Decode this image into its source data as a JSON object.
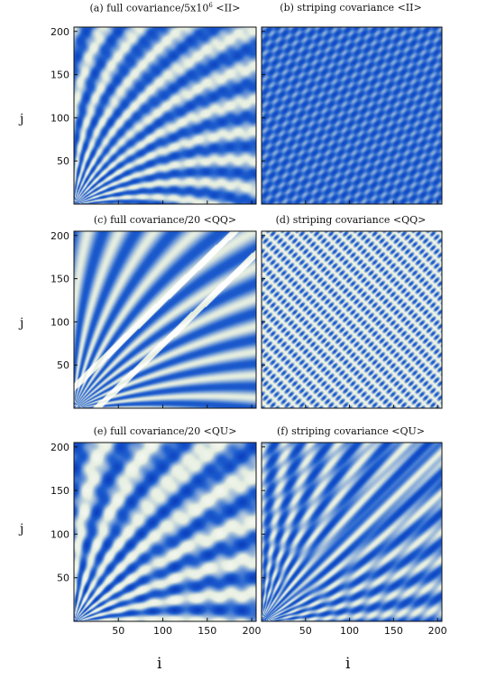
{
  "colors": {
    "low": "#ffffff",
    "mid": "#e6eee0",
    "high": "#1f5fcf",
    "deep": "#0b3fbf",
    "axis": "#111111"
  },
  "axes": {
    "ylabel": "j",
    "xlabel": "i",
    "xticks": [
      50,
      100,
      150,
      200
    ],
    "yticks": [
      50,
      100,
      150,
      200
    ]
  },
  "chart_data": [
    {
      "type": "heatmap",
      "panel": "a",
      "title": "(a) full covariance/5x10",
      "title_sup": "6",
      "title_tail": " <II>",
      "xlabel": "",
      "ylabel": "j",
      "xlim": [
        0,
        205
      ],
      "ylim": [
        0,
        205
      ],
      "grid": false
    },
    {
      "type": "heatmap",
      "panel": "b",
      "title": "(b) striping covariance <II>",
      "xlabel": "",
      "ylabel": "",
      "xlim": [
        0,
        205
      ],
      "ylim": [
        0,
        205
      ],
      "grid": false
    },
    {
      "type": "heatmap",
      "panel": "c",
      "title": "(c) full covariance/20 <QQ>",
      "xlabel": "",
      "ylabel": "j",
      "xlim": [
        0,
        205
      ],
      "ylim": [
        0,
        205
      ],
      "grid": false
    },
    {
      "type": "heatmap",
      "panel": "d",
      "title": "(d) striping covariance <QQ>",
      "xlabel": "",
      "ylabel": "",
      "xlim": [
        0,
        205
      ],
      "ylim": [
        0,
        205
      ],
      "grid": false
    },
    {
      "type": "heatmap",
      "panel": "e",
      "title": "(e) full covariance/20 <QU>",
      "xlabel": "i",
      "ylabel": "j",
      "xlim": [
        0,
        205
      ],
      "ylim": [
        0,
        205
      ],
      "grid": false
    },
    {
      "type": "heatmap",
      "panel": "f",
      "title": "(f) striping covariance <QU>",
      "xlabel": "i",
      "ylabel": "",
      "xlim": [
        0,
        205
      ],
      "ylim": [
        0,
        205
      ],
      "grid": false
    }
  ]
}
